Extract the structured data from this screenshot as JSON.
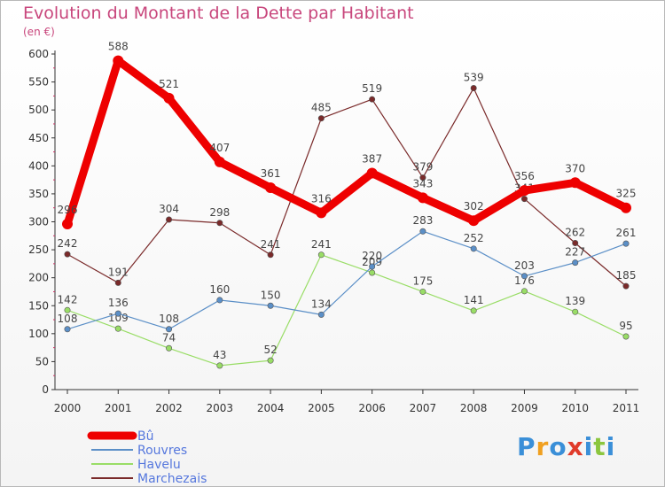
{
  "chart_data": {
    "type": "line",
    "title": "Evolution du Montant de la Dette par Habitant",
    "subtitle": "(en €)",
    "x": [
      "2000",
      "2001",
      "2002",
      "2003",
      "2004",
      "2005",
      "2006",
      "2007",
      "2008",
      "2009",
      "2010",
      "2011"
    ],
    "ylim": [
      0,
      600
    ],
    "yticks": [
      0,
      50,
      100,
      150,
      200,
      250,
      300,
      350,
      400,
      450,
      500,
      550,
      600
    ],
    "grid": false,
    "legend": "bottom-left",
    "series": [
      {
        "name": "Bû",
        "color": "#ee0000",
        "values": [
          296,
          588,
          521,
          407,
          361,
          316,
          387,
          343,
          302,
          356,
          370,
          325
        ]
      },
      {
        "name": "Rouvres",
        "color": "#5b8fc7",
        "values": [
          108,
          136,
          108,
          160,
          150,
          134,
          220,
          283,
          252,
          203,
          227,
          261
        ]
      },
      {
        "name": "Havelu",
        "color": "#99dd66",
        "values": [
          142,
          109,
          74,
          43,
          52,
          241,
          209,
          175,
          141,
          176,
          139,
          95
        ]
      },
      {
        "name": "Marchezais",
        "color": "#7a2a2a",
        "values": [
          242,
          191,
          304,
          298,
          241,
          485,
          519,
          379,
          539,
          341,
          262,
          185
        ]
      }
    ]
  },
  "logo": {
    "letters": [
      "P",
      "r",
      "o",
      "x",
      "i",
      "t",
      "i"
    ],
    "colors": [
      "#3a8fd8",
      "#f0a020",
      "#3a8fd8",
      "#e03a2a",
      "#3a8fd8",
      "#8cc63e",
      "#3a8fd8"
    ]
  }
}
